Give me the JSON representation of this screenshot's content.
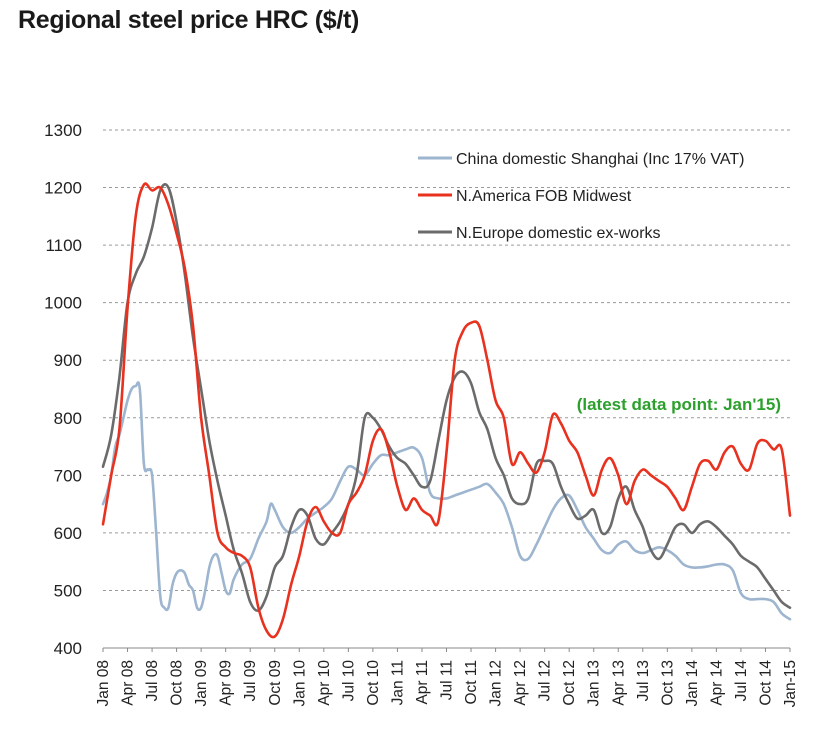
{
  "chart_data": {
    "type": "line",
    "title": "Regional steel price HRC ($/t)",
    "xlabel": "",
    "ylabel": "",
    "ylim": [
      400,
      1300
    ],
    "yticks": [
      400,
      500,
      600,
      700,
      800,
      900,
      1000,
      1100,
      1200,
      1300
    ],
    "grid": "horizontal dashed",
    "legend_position": "top-right",
    "annotation": "(latest data point: Jan'15)",
    "annotation_color": "#2ca02c",
    "xtick_labels": [
      "Jan 08",
      "Apr 08",
      "Jul 08",
      "Oct 08",
      "Jan 09",
      "Apr 09",
      "Jul 09",
      "Oct 09",
      "Jan 10",
      "Apr 10",
      "Jul 10",
      "Oct 10",
      "Jan 11",
      "Apr 11",
      "Jul 11",
      "Oct 11",
      "Jan 12",
      "Apr 12",
      "Jul 12",
      "Oct 12",
      "Jan 13",
      "Apr 13",
      "Jul 13",
      "Oct 13",
      "Jan 14",
      "Apr 14",
      "Jul 14",
      "Oct 14",
      "Jan-15"
    ],
    "x_start": "2008-01",
    "x_end": "2015-01",
    "series": [
      {
        "name": "China domestic Shanghai (Inc 17% VAT)",
        "color": "#9db5cf",
        "values": [
          [
            0,
            650
          ],
          [
            0.5,
            670
          ],
          [
            1,
            700
          ],
          [
            1.5,
            750
          ],
          [
            2,
            770
          ],
          [
            2.5,
            800
          ],
          [
            3,
            830
          ],
          [
            3.5,
            850
          ],
          [
            4,
            855
          ],
          [
            4.5,
            850
          ],
          [
            5,
            720
          ],
          [
            5.5,
            710
          ],
          [
            6,
            700
          ],
          [
            6.5,
            600
          ],
          [
            7,
            490
          ],
          [
            7.5,
            470
          ],
          [
            8,
            470
          ],
          [
            8.5,
            510
          ],
          [
            9,
            530
          ],
          [
            9.5,
            535
          ],
          [
            10,
            530
          ],
          [
            10.5,
            510
          ],
          [
            11,
            500
          ],
          [
            11.5,
            470
          ],
          [
            12,
            470
          ],
          [
            12.5,
            500
          ],
          [
            13,
            540
          ],
          [
            13.5,
            560
          ],
          [
            14,
            560
          ],
          [
            14.5,
            530
          ],
          [
            15,
            500
          ],
          [
            15.5,
            495
          ],
          [
            16,
            520
          ],
          [
            17,
            545
          ],
          [
            18,
            555
          ],
          [
            19,
            590
          ],
          [
            20,
            620
          ],
          [
            20.5,
            650
          ],
          [
            21,
            640
          ],
          [
            22,
            610
          ],
          [
            23,
            600
          ],
          [
            24,
            610
          ],
          [
            25,
            625
          ],
          [
            26,
            635
          ],
          [
            27,
            645
          ],
          [
            28,
            660
          ],
          [
            29,
            690
          ],
          [
            30,
            715
          ],
          [
            31,
            710
          ],
          [
            32,
            700
          ],
          [
            33,
            720
          ],
          [
            34,
            735
          ],
          [
            35,
            735
          ],
          [
            36,
            740
          ],
          [
            37,
            745
          ],
          [
            38,
            748
          ],
          [
            39,
            730
          ],
          [
            40,
            670
          ],
          [
            41,
            660
          ],
          [
            42,
            660
          ],
          [
            43,
            665
          ],
          [
            44,
            670
          ],
          [
            45,
            675
          ],
          [
            46,
            680
          ],
          [
            47,
            685
          ],
          [
            48,
            670
          ],
          [
            49,
            650
          ],
          [
            50,
            610
          ],
          [
            51,
            560
          ],
          [
            52,
            555
          ],
          [
            53,
            580
          ],
          [
            54,
            610
          ],
          [
            55,
            640
          ],
          [
            56,
            660
          ],
          [
            57,
            665
          ],
          [
            58,
            640
          ],
          [
            59,
            610
          ],
          [
            60,
            590
          ],
          [
            61,
            570
          ],
          [
            62,
            565
          ],
          [
            63,
            580
          ],
          [
            64,
            585
          ],
          [
            65,
            570
          ],
          [
            66,
            565
          ],
          [
            67,
            570
          ],
          [
            68,
            575
          ],
          [
            69,
            570
          ],
          [
            70,
            560
          ],
          [
            71,
            545
          ],
          [
            72,
            540
          ],
          [
            73,
            540
          ],
          [
            74,
            542
          ],
          [
            75,
            545
          ],
          [
            76,
            545
          ],
          [
            77,
            535
          ],
          [
            78,
            495
          ],
          [
            79,
            485
          ],
          [
            80,
            485
          ],
          [
            81,
            485
          ],
          [
            82,
            480
          ],
          [
            83,
            460
          ],
          [
            84,
            450
          ]
        ]
      },
      {
        "name": "N.America FOB Midwest",
        "color": "#e8311e",
        "values": [
          [
            0,
            615
          ],
          [
            1,
            700
          ],
          [
            2,
            780
          ],
          [
            3,
            990
          ],
          [
            4,
            1150
          ],
          [
            5,
            1205
          ],
          [
            6,
            1195
          ],
          [
            7,
            1200
          ],
          [
            8,
            1170
          ],
          [
            9,
            1120
          ],
          [
            10,
            1060
          ],
          [
            11,
            960
          ],
          [
            12,
            800
          ],
          [
            13,
            700
          ],
          [
            14,
            600
          ],
          [
            15,
            575
          ],
          [
            16,
            565
          ],
          [
            17,
            560
          ],
          [
            18,
            540
          ],
          [
            19,
            470
          ],
          [
            20,
            430
          ],
          [
            21,
            420
          ],
          [
            22,
            450
          ],
          [
            23,
            510
          ],
          [
            24,
            560
          ],
          [
            25,
            620
          ],
          [
            26,
            645
          ],
          [
            27,
            620
          ],
          [
            28,
            600
          ],
          [
            29,
            600
          ],
          [
            30,
            650
          ],
          [
            31,
            670
          ],
          [
            32,
            700
          ],
          [
            33,
            760
          ],
          [
            34,
            780
          ],
          [
            35,
            740
          ],
          [
            36,
            680
          ],
          [
            37,
            640
          ],
          [
            38,
            660
          ],
          [
            39,
            640
          ],
          [
            40,
            630
          ],
          [
            41,
            620
          ],
          [
            42,
            740
          ],
          [
            43,
            900
          ],
          [
            44,
            950
          ],
          [
            45,
            965
          ],
          [
            46,
            960
          ],
          [
            47,
            900
          ],
          [
            48,
            830
          ],
          [
            49,
            800
          ],
          [
            50,
            720
          ],
          [
            51,
            740
          ],
          [
            52,
            720
          ],
          [
            53,
            705
          ],
          [
            54,
            740
          ],
          [
            55,
            805
          ],
          [
            56,
            790
          ],
          [
            57,
            760
          ],
          [
            58,
            740
          ],
          [
            59,
            700
          ],
          [
            60,
            665
          ],
          [
            61,
            710
          ],
          [
            62,
            730
          ],
          [
            63,
            700
          ],
          [
            64,
            650
          ],
          [
            65,
            690
          ],
          [
            66,
            710
          ],
          [
            67,
            700
          ],
          [
            68,
            690
          ],
          [
            69,
            680
          ],
          [
            70,
            660
          ],
          [
            71,
            640
          ],
          [
            72,
            680
          ],
          [
            73,
            720
          ],
          [
            74,
            725
          ],
          [
            75,
            710
          ],
          [
            76,
            740
          ],
          [
            77,
            750
          ],
          [
            78,
            720
          ],
          [
            79,
            710
          ],
          [
            80,
            755
          ],
          [
            81,
            760
          ],
          [
            82,
            745
          ],
          [
            83,
            745
          ],
          [
            84,
            630
          ]
        ]
      },
      {
        "name": "N.Europe domestic ex-works",
        "color": "#6b6b6b",
        "values": [
          [
            0,
            715
          ],
          [
            1,
            770
          ],
          [
            2,
            870
          ],
          [
            3,
            1000
          ],
          [
            4,
            1050
          ],
          [
            5,
            1080
          ],
          [
            6,
            1130
          ],
          [
            7,
            1195
          ],
          [
            8,
            1200
          ],
          [
            9,
            1140
          ],
          [
            10,
            1050
          ],
          [
            11,
            940
          ],
          [
            12,
            850
          ],
          [
            13,
            760
          ],
          [
            14,
            690
          ],
          [
            15,
            630
          ],
          [
            16,
            570
          ],
          [
            17,
            530
          ],
          [
            18,
            480
          ],
          [
            19,
            465
          ],
          [
            20,
            490
          ],
          [
            21,
            540
          ],
          [
            22,
            560
          ],
          [
            23,
            610
          ],
          [
            24,
            640
          ],
          [
            25,
            630
          ],
          [
            26,
            590
          ],
          [
            27,
            580
          ],
          [
            28,
            600
          ],
          [
            29,
            620
          ],
          [
            30,
            650
          ],
          [
            31,
            700
          ],
          [
            32,
            800
          ],
          [
            33,
            800
          ],
          [
            34,
            780
          ],
          [
            35,
            750
          ],
          [
            36,
            730
          ],
          [
            37,
            720
          ],
          [
            38,
            700
          ],
          [
            39,
            680
          ],
          [
            40,
            690
          ],
          [
            41,
            760
          ],
          [
            42,
            830
          ],
          [
            43,
            870
          ],
          [
            44,
            880
          ],
          [
            45,
            860
          ],
          [
            46,
            810
          ],
          [
            47,
            780
          ],
          [
            48,
            730
          ],
          [
            49,
            700
          ],
          [
            50,
            660
          ],
          [
            51,
            650
          ],
          [
            52,
            660
          ],
          [
            53,
            720
          ],
          [
            54,
            725
          ],
          [
            55,
            720
          ],
          [
            56,
            680
          ],
          [
            57,
            650
          ],
          [
            58,
            625
          ],
          [
            59,
            630
          ],
          [
            60,
            640
          ],
          [
            61,
            600
          ],
          [
            62,
            610
          ],
          [
            63,
            660
          ],
          [
            64,
            680
          ],
          [
            65,
            640
          ],
          [
            66,
            610
          ],
          [
            67,
            570
          ],
          [
            68,
            555
          ],
          [
            69,
            580
          ],
          [
            70,
            610
          ],
          [
            71,
            615
          ],
          [
            72,
            600
          ],
          [
            73,
            615
          ],
          [
            74,
            620
          ],
          [
            75,
            610
          ],
          [
            76,
            595
          ],
          [
            77,
            580
          ],
          [
            78,
            560
          ],
          [
            79,
            550
          ],
          [
            80,
            540
          ],
          [
            81,
            520
          ],
          [
            82,
            500
          ],
          [
            83,
            480
          ],
          [
            84,
            470
          ]
        ]
      }
    ]
  }
}
